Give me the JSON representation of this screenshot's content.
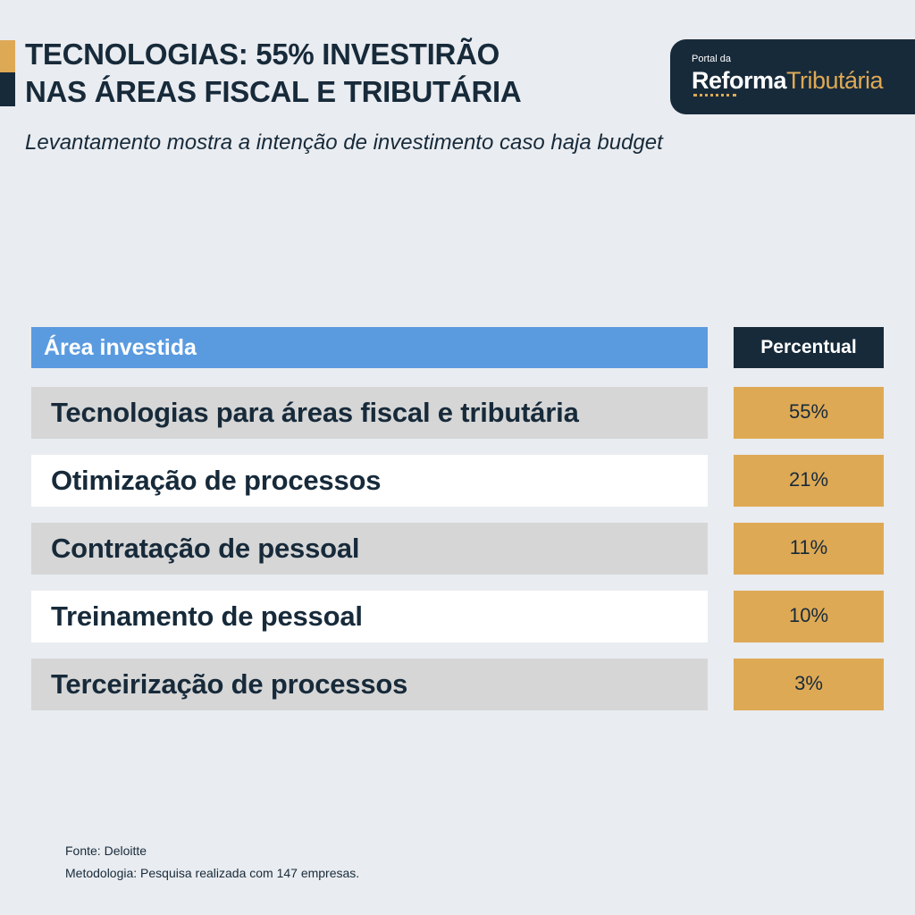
{
  "header": {
    "title_line1": "TECNOLOGIAS: 55% INVESTIRÃO",
    "title_line2": "NAS ÁREAS FISCAL E TRIBUTÁRIA",
    "subtitle": "Levantamento mostra a intenção de investimento caso haja budget"
  },
  "logo": {
    "small": "Portal da",
    "bold": "Reforma",
    "light": "Tributária"
  },
  "colors": {
    "navy": "#172a3a",
    "gold": "#dea955",
    "blue": "#5a9be0",
    "gray_row": "#d6d6d6",
    "background": "#e9ecf0"
  },
  "chart_data": {
    "type": "table",
    "columns": [
      "Área investida",
      "Percentual"
    ],
    "rows": [
      {
        "label": "Tecnologias para áreas fiscal e tributária",
        "value": 55,
        "display": "55%"
      },
      {
        "label": "Otimização de processos",
        "value": 21,
        "display": "21%"
      },
      {
        "label": "Contratação de pessoal",
        "value": 11,
        "display": "11%"
      },
      {
        "label": "Treinamento de pessoal",
        "value": 10,
        "display": "10%"
      },
      {
        "label": "Terceirização de processos",
        "value": 3,
        "display": "3%"
      }
    ]
  },
  "footer": {
    "source": "Fonte: Deloitte",
    "methodology": "Metodologia: Pesquisa realizada com 147 empresas."
  }
}
